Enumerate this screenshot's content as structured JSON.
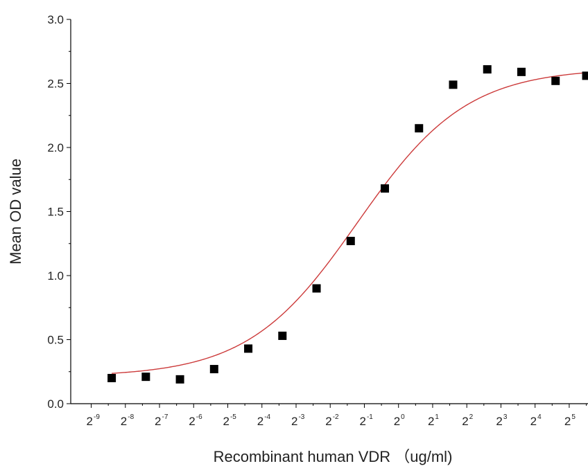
{
  "chart_data": {
    "type": "scatter",
    "xlabel": "Recombinant human VDR （ug/ml)",
    "ylabel": "Mean OD value",
    "x_scale": "log2",
    "xlim_exp": [
      -9.6,
      5.55
    ],
    "ylim": [
      0.0,
      3.0
    ],
    "x_ticks": [
      {
        "base": "2",
        "exp": "-9"
      },
      {
        "base": "2",
        "exp": "-8"
      },
      {
        "base": "2",
        "exp": "-7"
      },
      {
        "base": "2",
        "exp": "-6"
      },
      {
        "base": "2",
        "exp": "-5"
      },
      {
        "base": "2",
        "exp": "-4"
      },
      {
        "base": "2",
        "exp": "-3"
      },
      {
        "base": "2",
        "exp": "-2"
      },
      {
        "base": "2",
        "exp": "-1"
      },
      {
        "base": "2",
        "exp": "0"
      },
      {
        "base": "2",
        "exp": "1"
      },
      {
        "base": "2",
        "exp": "2"
      },
      {
        "base": "2",
        "exp": "3"
      },
      {
        "base": "2",
        "exp": "4"
      },
      {
        "base": "2",
        "exp": "5"
      }
    ],
    "y_ticks": [
      "0.0",
      "0.5",
      "1.0",
      "1.5",
      "2.0",
      "2.5",
      "3.0"
    ],
    "series": [
      {
        "marker": "square",
        "color": "#000000",
        "x_exp": [
          -8.4,
          -7.4,
          -6.4,
          -5.4,
          -4.4,
          -3.4,
          -2.4,
          -1.4,
          -0.4,
          0.6,
          1.6,
          2.6,
          3.6,
          4.6,
          5.5
        ],
        "y": [
          0.2,
          0.21,
          0.19,
          0.27,
          0.43,
          0.53,
          0.9,
          1.27,
          1.68,
          2.15,
          2.49,
          2.61,
          2.59,
          2.52,
          2.56
        ]
      }
    ],
    "fit_curve": {
      "type": "logistic",
      "color": "#cc3a3a",
      "params": {
        "bottom": 0.21,
        "top": 2.62,
        "center_exp": -1.2,
        "hill": 0.9
      },
      "x_exp_range": [
        -8.4,
        5.55
      ]
    },
    "grid": false,
    "legend": "none"
  }
}
